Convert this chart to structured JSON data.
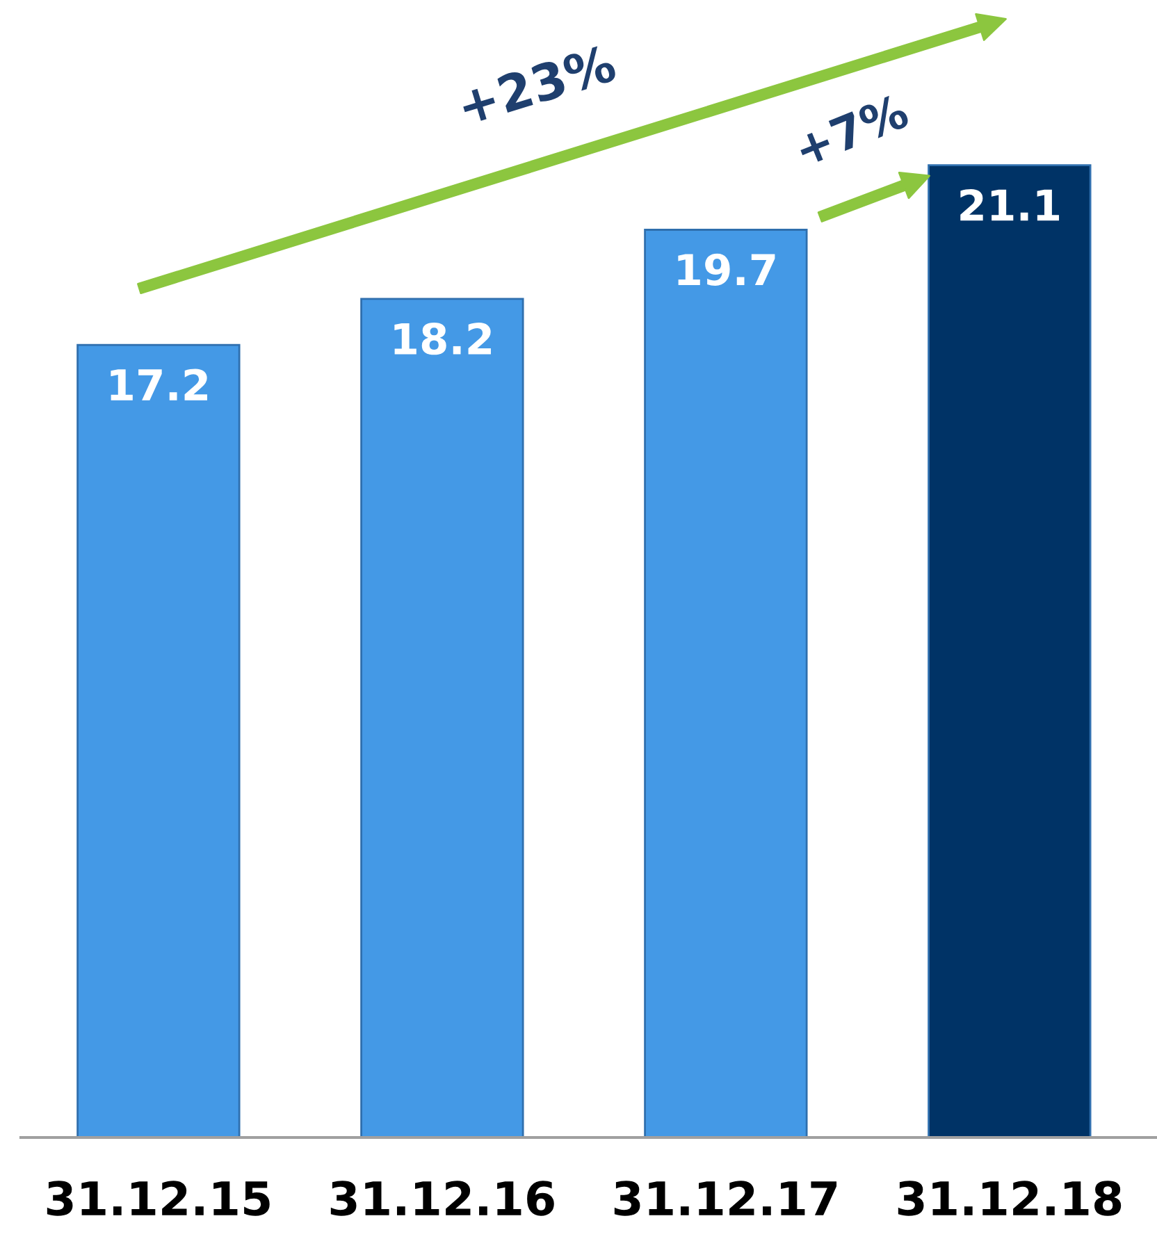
{
  "chart_data": {
    "type": "bar",
    "categories": [
      "31.12.15",
      "31.12.16",
      "31.12.17",
      "31.12.18"
    ],
    "values": [
      17.2,
      18.2,
      19.7,
      21.1
    ],
    "colors": [
      "#4499e6",
      "#4499e6",
      "#4499e6",
      "#003366"
    ],
    "data_labels": true,
    "grid": false,
    "tick_labels": "x",
    "annotations": [
      "+23%",
      "+7%"
    ]
  }
}
